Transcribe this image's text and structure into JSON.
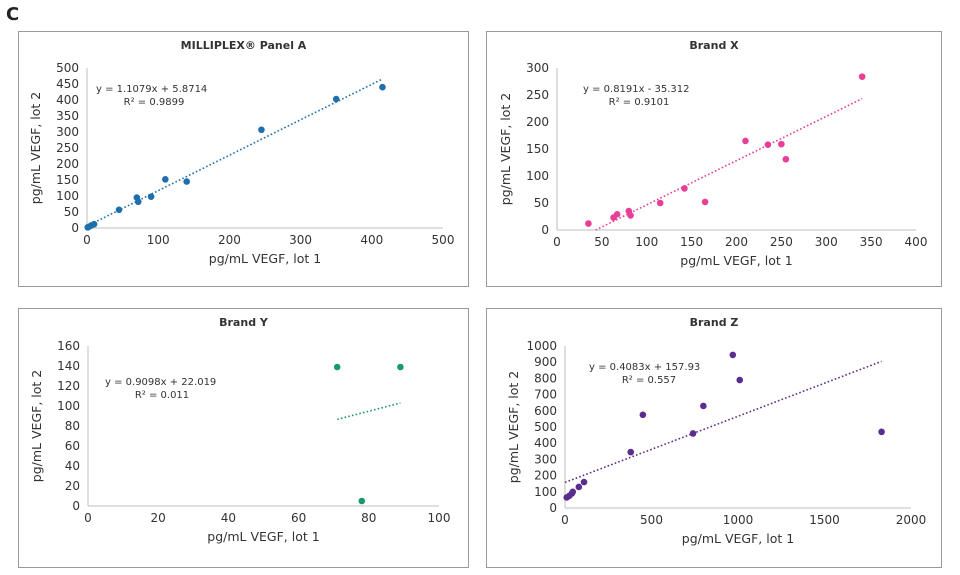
{
  "figure_label": "C",
  "chart_data": [
    {
      "type": "scatter",
      "title": "MILLIPLEX® Panel A",
      "xlabel": "pg/mL VEGF, lot 1",
      "ylabel": "pg/mL VEGF, lot 2",
      "xlim": [
        0,
        500
      ],
      "ylim": [
        0,
        500
      ],
      "xticks": [
        "0",
        "100",
        "200",
        "300",
        "400",
        "500"
      ],
      "yticks": [
        "0",
        "50",
        "100",
        "150",
        "200",
        "250",
        "300",
        "350",
        "400",
        "450",
        "500"
      ],
      "color": "#1f6fad",
      "points": [
        [
          1,
          2
        ],
        [
          3,
          4
        ],
        [
          6,
          8
        ],
        [
          10,
          12
        ],
        [
          45,
          57
        ],
        [
          70,
          95
        ],
        [
          72,
          82
        ],
        [
          90,
          98
        ],
        [
          110,
          152
        ],
        [
          140,
          145
        ],
        [
          245,
          307
        ],
        [
          350,
          403
        ],
        [
          415,
          440
        ]
      ],
      "trendline": {
        "slope": 1.1079,
        "intercept": 5.8714,
        "x_range": [
          0,
          415
        ]
      },
      "equation": "y = 1.1079x + 5.8714",
      "r2": "R² = 0.9899"
    },
    {
      "type": "scatter",
      "title": "Brand X",
      "xlabel": "pg/mL VEGF, lot 1",
      "ylabel": "pg/mL VEGF, lot 2",
      "xlim": [
        0,
        400
      ],
      "ylim": [
        0,
        300
      ],
      "xticks": [
        "0",
        "50",
        "100",
        "150",
        "200",
        "250",
        "300",
        "350",
        "400"
      ],
      "yticks": [
        "0",
        "50",
        "100",
        "150",
        "200",
        "250",
        "300"
      ],
      "color": "#e83e96",
      "points": [
        [
          35,
          12
        ],
        [
          63,
          23
        ],
        [
          67,
          29
        ],
        [
          80,
          35
        ],
        [
          82,
          27
        ],
        [
          115,
          50
        ],
        [
          142,
          77
        ],
        [
          165,
          52
        ],
        [
          210,
          165
        ],
        [
          235,
          158
        ],
        [
          250,
          159
        ],
        [
          255,
          131
        ],
        [
          340,
          284
        ]
      ],
      "trendline": {
        "slope": 0.8191,
        "intercept": -35.312,
        "x_range": [
          43,
          340
        ]
      },
      "equation": "y = 0.8191x - 35.312",
      "r2": "R² = 0.9101"
    },
    {
      "type": "scatter",
      "title": "Brand Y",
      "xlabel": "pg/mL VEGF, lot 1",
      "ylabel": "pg/mL VEGF, lot 2",
      "xlim": [
        0,
        100
      ],
      "ylim": [
        0,
        160
      ],
      "xticks": [
        "0",
        "20",
        "40",
        "60",
        "80",
        "100"
      ],
      "yticks": [
        "0",
        "20",
        "40",
        "60",
        "80",
        "100",
        "120",
        "140",
        "160"
      ],
      "color": "#1a9a6c",
      "points": [
        [
          71,
          139
        ],
        [
          78,
          5
        ],
        [
          89,
          139
        ]
      ],
      "trendline": {
        "slope": 0.9098,
        "intercept": 22.019,
        "x_range": [
          71,
          89
        ]
      },
      "equation": "y = 0.9098x + 22.019",
      "r2": "R² = 0.011"
    },
    {
      "type": "scatter",
      "title": "Brand Z",
      "xlabel": "pg/mL VEGF, lot 1",
      "ylabel": "pg/mL VEGF, lot 2",
      "xlim": [
        0,
        2000
      ],
      "ylim": [
        0,
        1000
      ],
      "xticks": [
        "0",
        "500",
        "1000",
        "1500",
        "2000"
      ],
      "yticks": [
        "0",
        "100",
        "200",
        "300",
        "400",
        "500",
        "600",
        "700",
        "800",
        "900",
        "1000"
      ],
      "color": "#5b2d8e",
      "points": [
        [
          10,
          65
        ],
        [
          25,
          75
        ],
        [
          40,
          90
        ],
        [
          45,
          100
        ],
        [
          80,
          130
        ],
        [
          110,
          160
        ],
        [
          380,
          345
        ],
        [
          450,
          575
        ],
        [
          740,
          460
        ],
        [
          800,
          630
        ],
        [
          970,
          945
        ],
        [
          1010,
          790
        ],
        [
          1830,
          470
        ]
      ],
      "trendline": {
        "slope": 0.4083,
        "intercept": 157.93,
        "x_range": [
          0,
          1830
        ]
      },
      "equation": "y = 0.4083x + 157.93",
      "r2": "R² = 0.557"
    }
  ]
}
